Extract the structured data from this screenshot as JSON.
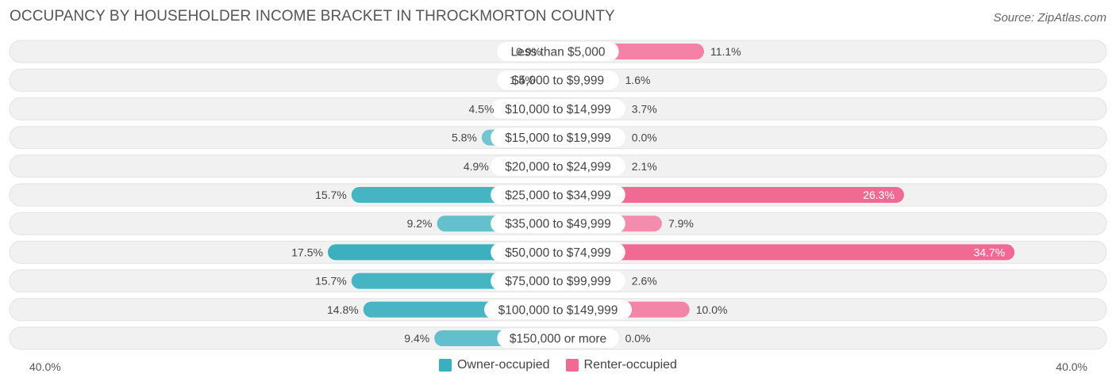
{
  "header": {
    "title": "OCCUPANCY BY HOUSEHOLDER INCOME BRACKET IN THROCKMORTON COUNTY",
    "source": "Source: ZipAtlas.com"
  },
  "axis": {
    "left_label": "40.0%",
    "right_label": "40.0%"
  },
  "legend": {
    "owner_label": "Owner-occupied",
    "renter_label": "Renter-occupied"
  },
  "colors": {
    "owner": "#3aafbf",
    "owner_light": "#8dd1da",
    "renter": "#f06a94",
    "renter_light": "#f7a8c1",
    "row_bg": "#f1f1f1"
  },
  "chart_data": {
    "type": "bar",
    "orientation": "horizontal-diverging",
    "max": 40.0,
    "categories": [
      "Less than $5,000",
      "$5,000 to $9,999",
      "$10,000 to $14,999",
      "$15,000 to $19,999",
      "$20,000 to $24,999",
      "$25,000 to $34,999",
      "$35,000 to $49,999",
      "$50,000 to $74,999",
      "$75,000 to $99,999",
      "$100,000 to $149,999",
      "$150,000 or more"
    ],
    "series": [
      {
        "name": "Owner-occupied",
        "values": [
          0.9,
          1.4,
          4.5,
          5.8,
          4.9,
          15.7,
          9.2,
          17.5,
          15.7,
          14.8,
          9.4
        ],
        "labels": [
          "0.9%",
          "1.4%",
          "4.5%",
          "5.8%",
          "4.9%",
          "15.7%",
          "9.2%",
          "17.5%",
          "15.7%",
          "14.8%",
          "9.4%"
        ]
      },
      {
        "name": "Renter-occupied",
        "values": [
          11.1,
          1.6,
          3.7,
          0.0,
          2.1,
          26.3,
          7.9,
          34.7,
          2.6,
          10.0,
          0.0
        ],
        "labels": [
          "11.1%",
          "1.6%",
          "3.7%",
          "0.0%",
          "2.1%",
          "26.3%",
          "7.9%",
          "34.7%",
          "2.6%",
          "10.0%",
          "0.0%"
        ]
      }
    ]
  }
}
